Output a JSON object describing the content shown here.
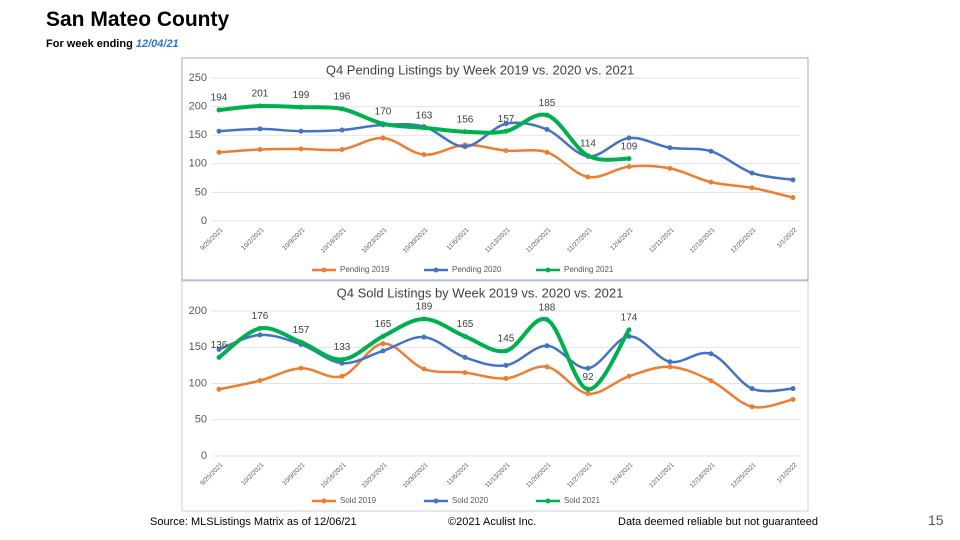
{
  "slide": {
    "title": "San Mateo County",
    "subtitle": "For week ending",
    "date": "12/04/21",
    "source": "Source: MLSListings Matrix as of 12/06/21",
    "copyright": "©2021 Aculist Inc.",
    "disclaimer": "Data deemed reliable but not guaranteed",
    "page": "15"
  },
  "chart_data": [
    {
      "type": "line",
      "title": "Q4 Pending Listings by Week 2019 vs. 2020 vs. 2021",
      "categories": [
        "9/25/2021",
        "10/2/2021",
        "10/9/2021",
        "10/16/2021",
        "10/23/2021",
        "10/30/2021",
        "11/6/2021",
        "11/13/2021",
        "11/20/2021",
        "11/27/2021",
        "12/4/2021",
        "12/11/2021",
        "12/18/2021",
        "12/25/2021",
        "1/1/2022"
      ],
      "series": [
        {
          "name": "Pending 2019",
          "color": "#ed7d31",
          "values": [
            120,
            125,
            126,
            125,
            145,
            116,
            133,
            123,
            120,
            77,
            95,
            92,
            68,
            58,
            41
          ]
        },
        {
          "name": "Pending 2020",
          "color": "#4472c4",
          "values": [
            157,
            161,
            157,
            159,
            168,
            165,
            130,
            170,
            160,
            113,
            145,
            128,
            122,
            84,
            72
          ]
        },
        {
          "name": "Pending 2021",
          "color": "#00b050",
          "show_labels": true,
          "values": [
            194,
            201,
            199,
            196,
            170,
            163,
            156,
            157,
            185,
            114,
            109,
            null,
            null,
            null,
            null
          ]
        }
      ],
      "ylim": [
        0,
        250
      ],
      "yticks": [
        0,
        50,
        100,
        150,
        200,
        250
      ],
      "legend": "bottom"
    },
    {
      "type": "line",
      "title": "Q4 Sold Listings by Week 2019 vs. 2020 vs. 2021",
      "categories": [
        "9/25/2021",
        "10/2/2021",
        "10/9/2021",
        "10/16/2021",
        "10/23/2021",
        "10/30/2021",
        "11/6/2021",
        "11/13/2021",
        "11/20/2021",
        "11/27/2021",
        "12/4/2021",
        "12/11/2021",
        "12/18/2021",
        "12/25/2021",
        "1/1/2022"
      ],
      "series": [
        {
          "name": "Sold 2019",
          "color": "#ed7d31",
          "values": [
            92,
            104,
            121,
            110,
            155,
            120,
            115,
            107,
            123,
            86,
            110,
            123,
            104,
            68,
            78
          ]
        },
        {
          "name": "Sold 2020",
          "color": "#4472c4",
          "values": [
            147,
            167,
            154,
            128,
            145,
            164,
            136,
            125,
            152,
            121,
            165,
            130,
            141,
            93,
            93
          ]
        },
        {
          "name": "Sold 2021",
          "color": "#00b050",
          "show_labels": true,
          "values": [
            136,
            176,
            157,
            133,
            165,
            189,
            165,
            145,
            188,
            92,
            174,
            null,
            null,
            null,
            null
          ]
        }
      ],
      "ylim": [
        0,
        200
      ],
      "yticks": [
        0,
        50,
        100,
        150,
        200
      ],
      "legend": "bottom"
    }
  ]
}
